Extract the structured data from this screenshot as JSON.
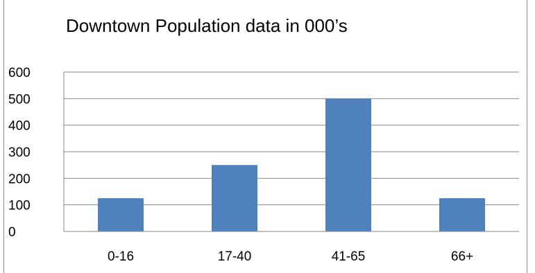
{
  "chart_data": {
    "type": "bar",
    "title": "Downtown Population data in 000’s",
    "categories": [
      "0-16",
      "17-40",
      "41-65",
      "66+"
    ],
    "values": [
      125,
      250,
      500,
      125
    ],
    "ylim": [
      0,
      600
    ],
    "yticks": [
      0,
      100,
      200,
      300,
      400,
      500,
      600
    ],
    "grid": true,
    "legend": "none",
    "bar_color": "#4f81bd",
    "grid_color": "#868686"
  }
}
